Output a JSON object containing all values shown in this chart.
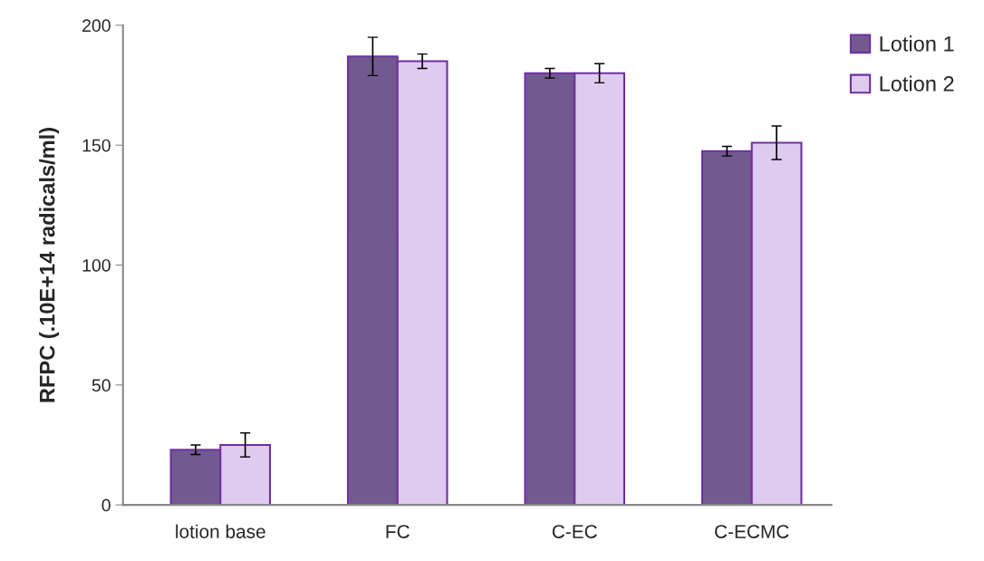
{
  "chart_data": {
    "type": "bar",
    "ylabel": "RFPC (.10E+14 radicals/ml)",
    "categories": [
      "lotion base",
      "FC",
      "C-EC",
      "C-ECMC"
    ],
    "series": [
      {
        "name": "Lotion 1",
        "color": "#725a90",
        "values": [
          23,
          187,
          180,
          147.5
        ],
        "errors": [
          2,
          8,
          2,
          2
        ]
      },
      {
        "name": "Lotion 2",
        "color": "#dfcbef",
        "values": [
          25,
          185,
          180,
          151
        ],
        "errors": [
          5,
          3,
          4,
          7
        ]
      }
    ],
    "ylim": [
      0,
      200
    ],
    "yticks": [
      0,
      50,
      100,
      150,
      200
    ],
    "grid": false,
    "legend": "top right"
  }
}
